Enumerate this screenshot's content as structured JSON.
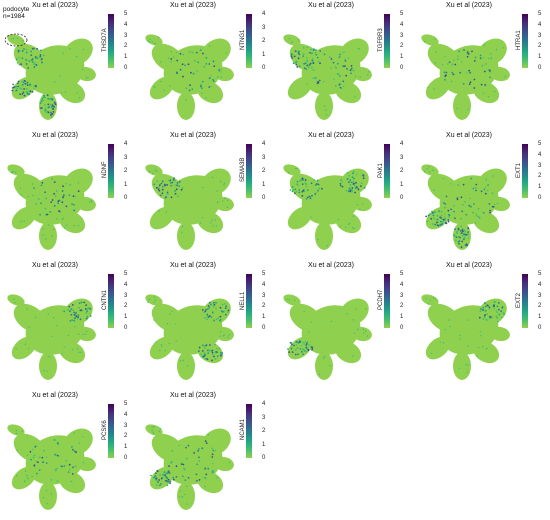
{
  "figure": {
    "annotation": {
      "label": "podocyte",
      "count": "n=1984"
    }
  },
  "colormap": [
    "#8fd14f",
    "#3fbd73",
    "#1fa187",
    "#2a788e",
    "#3b528b",
    "#472d7b",
    "#440154"
  ],
  "chart_data": [
    {
      "type": "scatter",
      "title": "Xu et al (2023)",
      "gene": "THSD7A",
      "colorbar": {
        "ticks": [
          "5",
          "4",
          "3",
          "2",
          "1",
          "0"
        ],
        "max": 5
      },
      "highlight": [
        1,
        3,
        5
      ]
    },
    {
      "type": "scatter",
      "title": "Xu et al (2023)",
      "gene": "NTNG1",
      "colorbar": {
        "ticks": [
          "4",
          "3",
          "2",
          "1",
          "0"
        ],
        "max": 4
      },
      "highlight": [
        0
      ]
    },
    {
      "type": "scatter",
      "title": "Xu et al (2023)",
      "gene": "TGFBR3",
      "colorbar": {
        "ticks": [
          "5",
          "4",
          "3",
          "2",
          "1",
          "0"
        ],
        "max": 5
      },
      "highlight": [
        0,
        1
      ]
    },
    {
      "type": "scatter",
      "title": "Xu et al (2023)",
      "gene": "HTRA1",
      "colorbar": {
        "ticks": [
          "5",
          "4",
          "3",
          "2",
          "1",
          "0"
        ],
        "max": 5
      },
      "highlight": [
        0
      ]
    },
    {
      "type": "scatter",
      "title": "Xu et al (2023)",
      "gene": "NDNF",
      "colorbar": {
        "ticks": [
          "4",
          "3",
          "2",
          "1",
          "0"
        ],
        "max": 4
      },
      "highlight": [
        0
      ]
    },
    {
      "type": "scatter",
      "title": "Xu et al (2023)",
      "gene": "SEMA3B",
      "colorbar": {
        "ticks": [
          "4",
          "3",
          "2",
          "1",
          "0"
        ],
        "max": 4
      },
      "highlight": [
        1
      ]
    },
    {
      "type": "scatter",
      "title": "Xu et al (2023)",
      "gene": "PAK1",
      "colorbar": {
        "ticks": [
          "4",
          "3",
          "2",
          "1",
          "0"
        ],
        "max": 4
      },
      "highlight": [
        1,
        2
      ]
    },
    {
      "type": "scatter",
      "title": "Xu et al (2023)",
      "gene": "EXT1",
      "colorbar": {
        "ticks": [
          "5",
          "4",
          "3",
          "2",
          "1",
          "0"
        ],
        "max": 5
      },
      "highlight": [
        0,
        3,
        5
      ]
    },
    {
      "type": "scatter",
      "title": "Xu et al (2023)",
      "gene": "CNTN1",
      "colorbar": {
        "ticks": [
          "5",
          "4",
          "3",
          "2",
          "1",
          "0"
        ],
        "max": 5
      },
      "highlight": [
        2
      ]
    },
    {
      "type": "scatter",
      "title": "Xu et al (2023)",
      "gene": "NELL1",
      "colorbar": {
        "ticks": [
          "5",
          "4",
          "3",
          "2",
          "1",
          "0"
        ],
        "max": 5
      },
      "highlight": [
        2,
        4
      ]
    },
    {
      "type": "scatter",
      "title": "Xu et al (2023)",
      "gene": "PCDH7",
      "colorbar": {
        "ticks": [
          "5",
          "4",
          "3",
          "2",
          "1",
          "0"
        ],
        "max": 5
      },
      "highlight": [
        3
      ]
    },
    {
      "type": "scatter",
      "title": "Xu et al (2023)",
      "gene": "EXT2",
      "colorbar": {
        "ticks": [
          "5",
          "4",
          "3",
          "2",
          "1",
          "0"
        ],
        "max": 5
      },
      "highlight": [
        2
      ]
    },
    {
      "type": "scatter",
      "title": "Xu et al (2023)",
      "gene": "PCSK6",
      "colorbar": {
        "ticks": [
          "5",
          "4",
          "3",
          "2",
          "1",
          "0"
        ],
        "max": 5
      },
      "highlight": [
        0
      ]
    },
    {
      "type": "scatter",
      "title": "Xu et al (2023)",
      "gene": "NCAM1",
      "colorbar": {
        "ticks": [
          "4",
          "3",
          "2",
          "1",
          "0"
        ],
        "max": 4
      },
      "highlight": [
        0,
        3
      ]
    }
  ]
}
